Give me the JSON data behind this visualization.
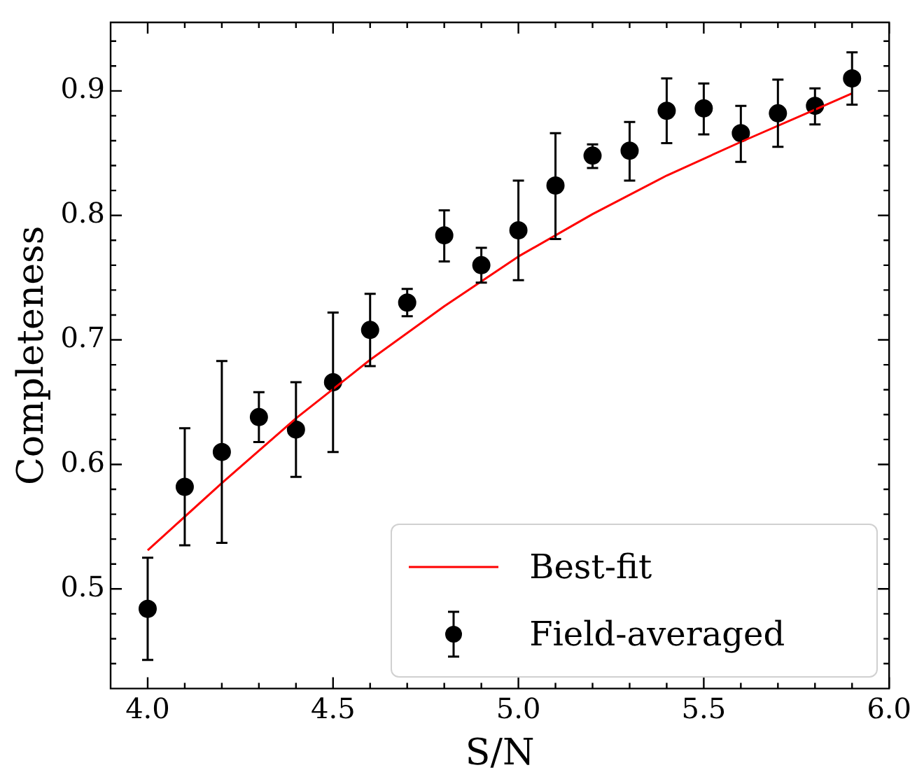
{
  "chart_data": {
    "type": "scatter",
    "xlabel": "S/N",
    "ylabel": "Completeness",
    "xlim": [
      3.9,
      6.0
    ],
    "ylim": [
      0.42,
      0.955
    ],
    "xticks": [
      {
        "value": 4,
        "label": "4.0"
      },
      {
        "value": 4.1,
        "label": null
      },
      {
        "value": 4.2,
        "label": null
      },
      {
        "value": 4.3,
        "label": null
      },
      {
        "value": 4.4,
        "label": null
      },
      {
        "value": 4.5,
        "label": "4.5"
      },
      {
        "value": 4.6,
        "label": null
      },
      {
        "value": 4.7,
        "label": null
      },
      {
        "value": 4.8,
        "label": null
      },
      {
        "value": 4.9,
        "label": null
      },
      {
        "value": 5,
        "label": "5.0"
      },
      {
        "value": 5.1,
        "label": null
      },
      {
        "value": 5.2,
        "label": null
      },
      {
        "value": 5.3,
        "label": null
      },
      {
        "value": 5.4,
        "label": null
      },
      {
        "value": 5.5,
        "label": "5.5"
      },
      {
        "value": 5.6,
        "label": null
      },
      {
        "value": 5.7,
        "label": null
      },
      {
        "value": 5.8,
        "label": null
      },
      {
        "value": 5.9,
        "label": null
      },
      {
        "value": 6,
        "label": "6.0"
      }
    ],
    "yticks": [
      {
        "value": 0.44,
        "label": null
      },
      {
        "value": 0.46,
        "label": null
      },
      {
        "value": 0.48,
        "label": null
      },
      0.5,
      {
        "value": 0.52,
        "label": null
      },
      {
        "value": 0.54,
        "label": null
      },
      {
        "value": 0.56,
        "label": null
      },
      {
        "value": 0.58,
        "label": null
      },
      0.6,
      {
        "value": 0.62,
        "label": null
      },
      {
        "value": 0.64,
        "label": null
      },
      {
        "value": 0.66,
        "label": null
      },
      {
        "value": 0.68,
        "label": null
      },
      0.7,
      {
        "value": 0.72,
        "label": null
      },
      {
        "value": 0.74,
        "label": null
      },
      {
        "value": 0.76,
        "label": null
      },
      {
        "value": 0.78,
        "label": null
      },
      0.8,
      {
        "value": 0.82,
        "label": null
      },
      {
        "value": 0.84,
        "label": null
      },
      {
        "value": 0.86,
        "label": null
      },
      {
        "value": 0.88,
        "label": null
      },
      0.9,
      {
        "value": 0.92,
        "label": null
      },
      {
        "value": 0.94,
        "label": null
      }
    ],
    "legend": "bottom right",
    "grid": false,
    "series": [
      {
        "name": "Best-fit",
        "type": "line",
        "marker": "none",
        "color": "#ff0000",
        "x": [
          4.0,
          4.2,
          4.4,
          4.6,
          4.8,
          5.0,
          5.2,
          5.4,
          5.6,
          5.8,
          5.9
        ],
        "values": [
          0.531,
          0.585,
          0.637,
          0.684,
          0.727,
          0.767,
          0.801,
          0.832,
          0.859,
          0.885,
          0.898
        ]
      },
      {
        "name": "Field-averaged",
        "type": "scatter",
        "marker": "circle",
        "color": "#000000",
        "x": [
          4.0,
          4.1,
          4.2,
          4.3,
          4.4,
          4.5,
          4.6,
          4.7,
          4.8,
          4.9,
          5.0,
          5.1,
          5.2,
          5.3,
          5.4,
          5.5,
          5.6,
          5.7,
          5.8,
          5.9
        ],
        "values": [
          0.484,
          0.582,
          0.61,
          0.638,
          0.628,
          0.666,
          0.708,
          0.73,
          0.784,
          0.76,
          0.788,
          0.824,
          0.848,
          0.852,
          0.884,
          0.886,
          0.866,
          0.882,
          0.888,
          0.91
        ],
        "errors": [
          [
            0.443,
            0.525
          ],
          [
            0.535,
            0.629
          ],
          [
            0.537,
            0.683
          ],
          [
            0.618,
            0.658
          ],
          [
            0.59,
            0.666
          ],
          [
            0.61,
            0.722
          ],
          [
            0.679,
            0.737
          ],
          [
            0.719,
            0.741
          ],
          [
            0.763,
            0.804
          ],
          [
            0.746,
            0.774
          ],
          [
            0.748,
            0.828
          ],
          [
            0.781,
            0.866
          ],
          [
            0.838,
            0.857
          ],
          [
            0.828,
            0.875
          ],
          [
            0.858,
            0.91
          ],
          [
            0.865,
            0.906
          ],
          [
            0.843,
            0.888
          ],
          [
            0.855,
            0.909
          ],
          [
            0.873,
            0.902
          ],
          [
            0.889,
            0.931
          ]
        ]
      }
    ]
  }
}
